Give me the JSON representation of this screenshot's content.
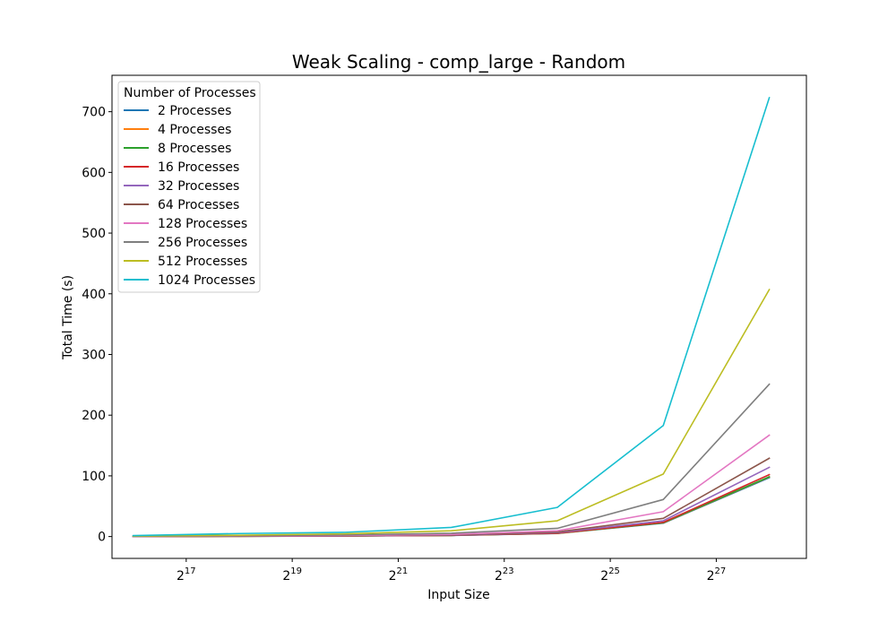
{
  "chart_data": {
    "type": "line",
    "title": "Weak Scaling - comp_large - Random",
    "xlabel": "Input Size",
    "ylabel": "Total Time (s)",
    "x_scale": "log2",
    "xlim_exp": [
      15.6,
      28.7
    ],
    "ylim": [
      -36,
      760
    ],
    "x_ticks": [
      {
        "base": "2",
        "exp": "17",
        "value_exp": 17
      },
      {
        "base": "2",
        "exp": "19",
        "value_exp": 19
      },
      {
        "base": "2",
        "exp": "21",
        "value_exp": 21
      },
      {
        "base": "2",
        "exp": "23",
        "value_exp": 23
      },
      {
        "base": "2",
        "exp": "25",
        "value_exp": 25
      },
      {
        "base": "2",
        "exp": "27",
        "value_exp": 27
      }
    ],
    "y_ticks": [
      0,
      100,
      200,
      300,
      400,
      500,
      600,
      700
    ],
    "x_exponents": [
      16,
      18,
      20,
      22,
      24,
      26,
      28
    ],
    "legend_title": "Number of Processes",
    "legend_position": "upper-left",
    "series": [
      {
        "name": "2 Processes",
        "color": "#1f77b4",
        "values": [
          0.1,
          0.4,
          0.9,
          1.8,
          5.0,
          22.0,
          97.0
        ]
      },
      {
        "name": "4 Processes",
        "color": "#ff7f0e",
        "values": [
          0.1,
          0.4,
          0.9,
          1.9,
          5.2,
          22.5,
          98.0
        ]
      },
      {
        "name": "8 Processes",
        "color": "#2ca02c",
        "values": [
          0.1,
          0.4,
          0.9,
          1.9,
          5.3,
          22.8,
          98.5
        ]
      },
      {
        "name": "16 Processes",
        "color": "#d62728",
        "values": [
          0.1,
          0.5,
          1.0,
          2.0,
          5.5,
          23.5,
          102.0
        ]
      },
      {
        "name": "32 Processes",
        "color": "#9467bd",
        "values": [
          0.2,
          0.6,
          1.1,
          2.2,
          6.5,
          26.0,
          114.0
        ]
      },
      {
        "name": "64 Processes",
        "color": "#8c564b",
        "values": [
          0.2,
          0.7,
          1.3,
          2.6,
          7.5,
          30.0,
          129.0
        ]
      },
      {
        "name": "128 Processes",
        "color": "#e377c2",
        "values": [
          0.3,
          0.9,
          1.7,
          3.5,
          9.5,
          41.0,
          167.0
        ]
      },
      {
        "name": "256 Processes",
        "color": "#7f7f7f",
        "values": [
          0.5,
          1.3,
          2.6,
          5.5,
          13.5,
          61.0,
          251.0
        ]
      },
      {
        "name": "512 Processes",
        "color": "#bcbd22",
        "values": [
          0.8,
          2.2,
          4.5,
          9.5,
          26.0,
          103.0,
          407.0
        ]
      },
      {
        "name": "1024 Processes",
        "color": "#17becf",
        "values": [
          1.5,
          5.0,
          7.0,
          15.0,
          48.0,
          183.0,
          723.0
        ]
      }
    ]
  }
}
